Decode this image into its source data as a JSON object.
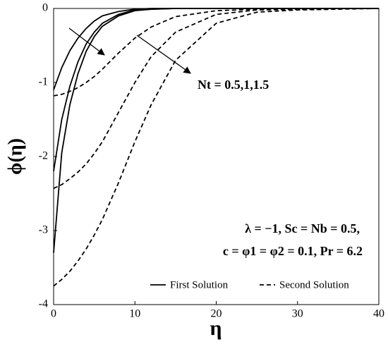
{
  "chart_data": {
    "type": "line",
    "x": [
      0,
      1,
      2,
      3,
      4,
      5,
      6,
      8,
      10,
      12,
      15,
      20,
      25,
      30,
      35,
      40
    ],
    "series": [
      {
        "style": "solid",
        "color": "#000000",
        "values": [
          -1.1,
          -0.8,
          -0.57,
          -0.4,
          -0.27,
          -0.17,
          -0.1,
          -0.04,
          -0.01,
          0,
          0,
          0,
          0,
          0,
          0,
          0
        ]
      },
      {
        "style": "solid",
        "color": "#000000",
        "values": [
          -2.2,
          -1.5,
          -1.05,
          -0.72,
          -0.48,
          -0.32,
          -0.2,
          -0.08,
          -0.02,
          -0.01,
          0,
          0,
          0,
          0,
          0,
          0
        ]
      },
      {
        "style": "solid",
        "color": "#000000",
        "values": [
          -3.3,
          -1.95,
          -1.3,
          -0.88,
          -0.58,
          -0.38,
          -0.24,
          -0.1,
          -0.03,
          -0.01,
          0,
          0,
          0,
          0,
          0,
          0
        ]
      },
      {
        "style": "dashed",
        "color": "#000000",
        "values": [
          -1.18,
          -1.16,
          -1.12,
          -1.07,
          -1.0,
          -0.92,
          -0.82,
          -0.6,
          -0.4,
          -0.25,
          -0.11,
          -0.03,
          -0.01,
          0,
          0,
          0
        ]
      },
      {
        "style": "dashed",
        "color": "#000000",
        "values": [
          -2.43,
          -2.38,
          -2.3,
          -2.21,
          -2.1,
          -1.96,
          -1.8,
          -1.4,
          -1.0,
          -0.65,
          -0.32,
          -0.08,
          -0.02,
          -0.01,
          0,
          0
        ]
      },
      {
        "style": "dashed",
        "color": "#000000",
        "values": [
          -3.75,
          -3.66,
          -3.55,
          -3.41,
          -3.25,
          -3.06,
          -2.85,
          -2.35,
          -1.8,
          -1.3,
          -0.7,
          -0.2,
          -0.05,
          -0.02,
          -0.01,
          0
        ]
      }
    ],
    "legend": [
      {
        "label": "First Solution",
        "style": "solid"
      },
      {
        "label": "Second Solution",
        "style": "dashed"
      }
    ],
    "xlabel": "η",
    "ylabel": "ϕ(η)",
    "xlim": [
      0,
      40
    ],
    "xticks": [
      0,
      10,
      20,
      30,
      40
    ],
    "ylim": [
      -4,
      0
    ],
    "yticks": [
      -4,
      -3,
      -2,
      -1,
      0
    ],
    "annotations": [
      "Nt = 0.5,1,1.5",
      "λ = −1, Sc = Nb = 0.5,",
      "c = φ1 = φ2 = 0.1, Pr = 6.2"
    ]
  }
}
